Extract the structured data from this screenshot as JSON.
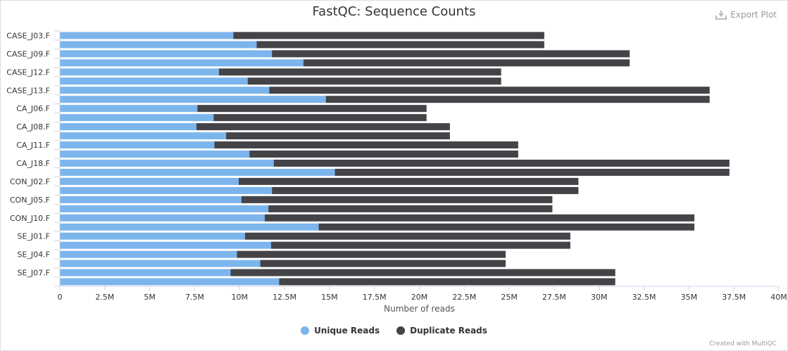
{
  "title": "FastQC: Sequence Counts",
  "export_label": "Export Plot",
  "credits": "Created with MultiQC",
  "chart_data": {
    "type": "bar",
    "orientation": "horizontal",
    "stacked": true,
    "title": "FastQC: Sequence Counts",
    "xlabel": "Number of reads",
    "ylabel": "",
    "xlim": [
      0,
      40000000
    ],
    "x_ticks": [
      "0",
      "2.5M",
      "5M",
      "7.5M",
      "10M",
      "12.5M",
      "15M",
      "17.5M",
      "20M",
      "22.5M",
      "25M",
      "27.5M",
      "30M",
      "32.5M",
      "35M",
      "37.5M",
      "40M"
    ],
    "category_labels": [
      "CASE_J03.F",
      "",
      "CASE_J09.F",
      "",
      "CASE_J12.F",
      "",
      "CASE_J13.F",
      "",
      "CA_J06.F",
      "",
      "CA_J08.F",
      "",
      "CA_J11.F",
      "",
      "CA_J18.F",
      "",
      "CON_J02.F",
      "",
      "CON_J05.F",
      "",
      "CON_J10.F",
      "",
      "SE_J01.F",
      "",
      "SE_J04.F",
      "",
      "SE_J07.F",
      ""
    ],
    "totals": [
      26950000,
      26950000,
      31700000,
      31700000,
      24550000,
      24550000,
      36150000,
      36150000,
      20400000,
      20400000,
      21700000,
      21700000,
      25500000,
      25500000,
      37250000,
      37250000,
      28850000,
      28850000,
      27400000,
      27400000,
      35300000,
      35300000,
      28400000,
      28400000,
      24800000,
      24800000,
      30900000,
      30900000
    ],
    "series": [
      {
        "name": "Unique Reads",
        "color": "#7cb5ec",
        "values": [
          9650000,
          10950000,
          11800000,
          13550000,
          8850000,
          10450000,
          11650000,
          14800000,
          7650000,
          8550000,
          7600000,
          9250000,
          8600000,
          10550000,
          11900000,
          15300000,
          9950000,
          11800000,
          10100000,
          11600000,
          11400000,
          14400000,
          10300000,
          11750000,
          9850000,
          11150000,
          9500000,
          12200000
        ]
      },
      {
        "name": "Duplicate Reads",
        "color": "#434348",
        "values": [
          17300000,
          16000000,
          19900000,
          18150000,
          15700000,
          14100000,
          24500000,
          21350000,
          12750000,
          11850000,
          14100000,
          12450000,
          16900000,
          14950000,
          25350000,
          21950000,
          18900000,
          17050000,
          17300000,
          15800000,
          23900000,
          20900000,
          18100000,
          16650000,
          14950000,
          13650000,
          21400000,
          18700000
        ]
      }
    ],
    "grid": false,
    "legend_position": "bottom"
  }
}
